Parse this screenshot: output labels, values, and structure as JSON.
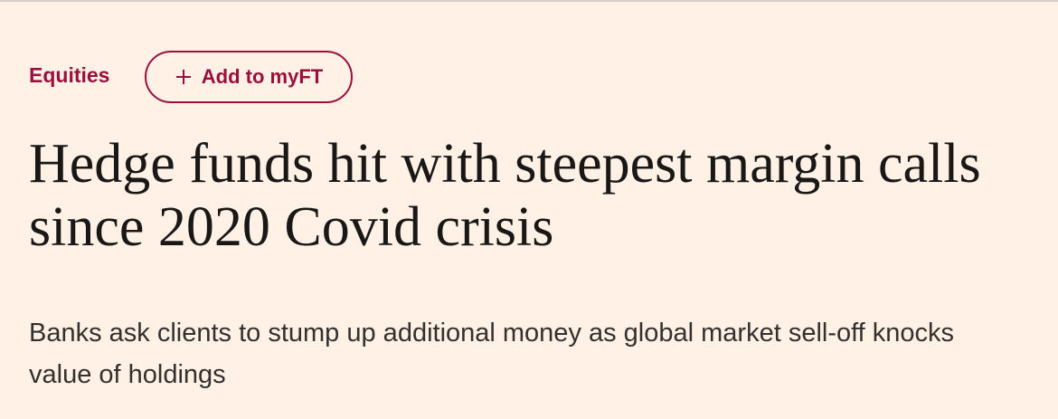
{
  "header": {
    "section": "Equities",
    "button": "Add to myFT"
  },
  "article": {
    "headline": "Hedge funds hit with steepest margin calls since 2020 Covid crisis",
    "standfirst": "Banks ask clients to stump up additional money as global market sell-off knocks value of holdings"
  }
}
